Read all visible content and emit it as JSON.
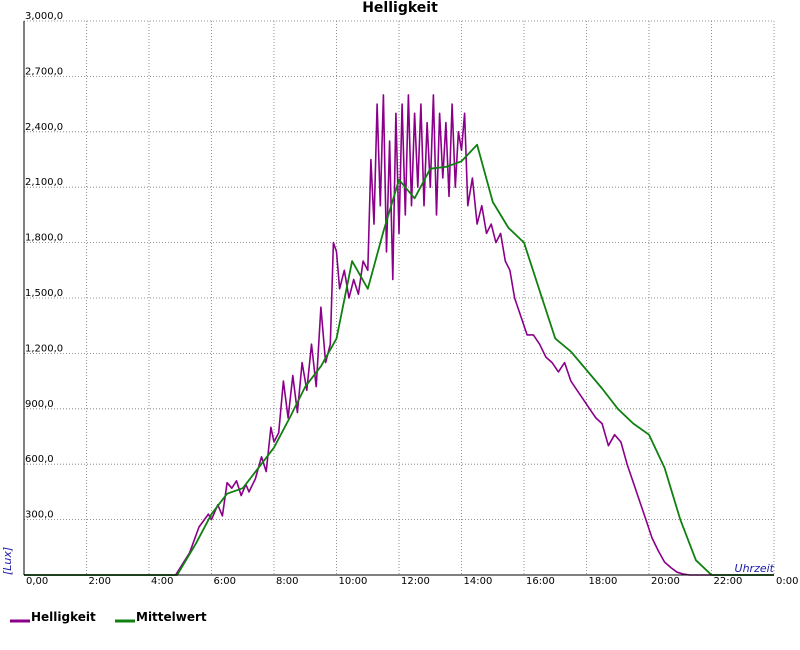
{
  "chart_data": {
    "type": "line",
    "title": "Helligkeit",
    "xlabel": "Uhrzeit",
    "ylabel": "[Lux]",
    "xlim": [
      0,
      24
    ],
    "ylim": [
      0,
      3000
    ],
    "grid": true,
    "legend_placement": "bottom-left",
    "x_tick_labels": [
      "0,00",
      "2:00",
      "4:00",
      "6:00",
      "8:00",
      "10:00",
      "12:00",
      "14:00",
      "16:00",
      "18:00",
      "20:00",
      "22:00",
      "0:00"
    ],
    "y_ticks": [
      300,
      600,
      900,
      1200,
      1500,
      1800,
      2100,
      2400,
      2700,
      3000
    ],
    "y_tick_labels": [
      "300,0",
      "600,0",
      "900,0",
      "1,200,0",
      "1,500,0",
      "1,800,0",
      "2,100,0",
      "2,400,0",
      "2,700,0",
      "3,000,0"
    ],
    "colors": {
      "Helligkeit": "#8b008b",
      "Mittelwert": "#108010"
    },
    "series": [
      {
        "name": "Helligkeit",
        "x": [
          0,
          4.85,
          5.0,
          5.3,
          5.6,
          5.9,
          6.0,
          6.2,
          6.35,
          6.5,
          6.65,
          6.8,
          6.95,
          7.1,
          7.2,
          7.4,
          7.6,
          7.75,
          7.9,
          8.0,
          8.15,
          8.3,
          8.45,
          8.6,
          8.75,
          8.9,
          9.05,
          9.2,
          9.35,
          9.5,
          9.65,
          9.8,
          9.9,
          10.0,
          10.1,
          10.25,
          10.4,
          10.55,
          10.7,
          10.85,
          11.0,
          11.1,
          11.2,
          11.3,
          11.4,
          11.5,
          11.6,
          11.7,
          11.8,
          11.9,
          12.0,
          12.1,
          12.2,
          12.3,
          12.4,
          12.5,
          12.6,
          12.7,
          12.8,
          12.9,
          13.0,
          13.1,
          13.2,
          13.3,
          13.4,
          13.5,
          13.6,
          13.7,
          13.8,
          13.9,
          14.0,
          14.1,
          14.2,
          14.35,
          14.5,
          14.65,
          14.8,
          14.95,
          15.1,
          15.25,
          15.4,
          15.55,
          15.7,
          15.9,
          16.1,
          16.3,
          16.5,
          16.7,
          16.9,
          17.1,
          17.3,
          17.5,
          17.7,
          17.9,
          18.1,
          18.3,
          18.5,
          18.7,
          18.9,
          19.1,
          19.3,
          19.5,
          19.7,
          19.9,
          20.1,
          20.3,
          20.5,
          20.7,
          20.9,
          21.1,
          21.3,
          21.5,
          21.65,
          21.8,
          24.0
        ],
        "values": [
          0,
          0,
          40,
          120,
          260,
          330,
          300,
          380,
          320,
          500,
          470,
          510,
          430,
          490,
          450,
          520,
          640,
          560,
          800,
          720,
          770,
          1050,
          850,
          1080,
          880,
          1150,
          1000,
          1250,
          1020,
          1450,
          1150,
          1250,
          1800,
          1750,
          1550,
          1650,
          1500,
          1600,
          1520,
          1700,
          1650,
          2250,
          1900,
          2550,
          2000,
          2600,
          1750,
          2350,
          1600,
          2500,
          1850,
          2550,
          1950,
          2600,
          2000,
          2500,
          2100,
          2550,
          2000,
          2450,
          2100,
          2600,
          1950,
          2500,
          2150,
          2450,
          2050,
          2550,
          2100,
          2400,
          2300,
          2500,
          2000,
          2150,
          1900,
          2000,
          1850,
          1900,
          1800,
          1850,
          1700,
          1650,
          1500,
          1400,
          1300,
          1300,
          1250,
          1180,
          1150,
          1100,
          1150,
          1050,
          1000,
          950,
          900,
          850,
          820,
          700,
          760,
          720,
          600,
          500,
          400,
          300,
          200,
          130,
          70,
          40,
          15,
          5,
          0,
          0,
          0,
          0,
          0
        ]
      },
      {
        "name": "Mittelwert",
        "x": [
          0,
          4.9,
          5.5,
          6.0,
          6.5,
          7.0,
          7.5,
          8.0,
          8.5,
          9.0,
          9.5,
          10.0,
          10.5,
          11.0,
          11.5,
          12.0,
          12.5,
          13.0,
          13.5,
          14.0,
          14.5,
          15.0,
          15.5,
          16.0,
          16.5,
          17.0,
          17.5,
          18.0,
          18.5,
          19.0,
          19.5,
          20.0,
          20.5,
          21.0,
          21.5,
          22.0,
          24.0
        ],
        "values": [
          0,
          0,
          170,
          330,
          440,
          470,
          580,
          690,
          850,
          1020,
          1130,
          1280,
          1700,
          1550,
          1860,
          2140,
          2040,
          2200,
          2210,
          2240,
          2330,
          2020,
          1880,
          1800,
          1540,
          1280,
          1210,
          1110,
          1010,
          900,
          820,
          760,
          580,
          300,
          80,
          0,
          0
        ]
      }
    ]
  }
}
